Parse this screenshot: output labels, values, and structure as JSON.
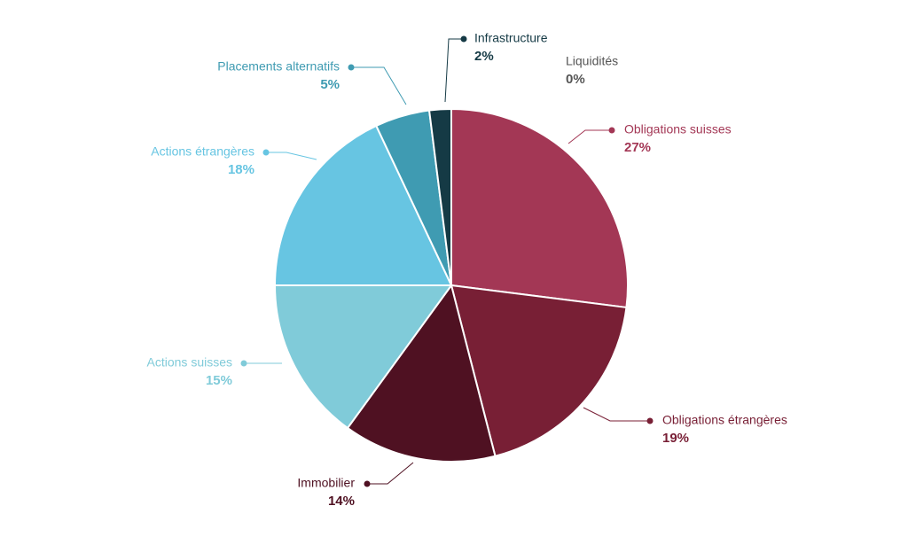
{
  "chart_data": {
    "type": "pie",
    "categories": [
      "Liquidités",
      "Obligations suisses",
      "Obligations étrangères",
      "Immobilier",
      "Actions suisses",
      "Actions étrangères",
      "Placements alternatifs",
      "Infrastructure"
    ],
    "values": [
      0,
      27,
      19,
      14,
      15,
      18,
      5,
      2
    ],
    "value_labels": [
      "0%",
      "27%",
      "19%",
      "14%",
      "15%",
      "18%",
      "5%",
      "2%"
    ],
    "colors": [
      "#555555",
      "#a33755",
      "#781f35",
      "#4f1122",
      "#80cbd9",
      "#67c5e2",
      "#3f9bb2",
      "#153a45"
    ]
  }
}
